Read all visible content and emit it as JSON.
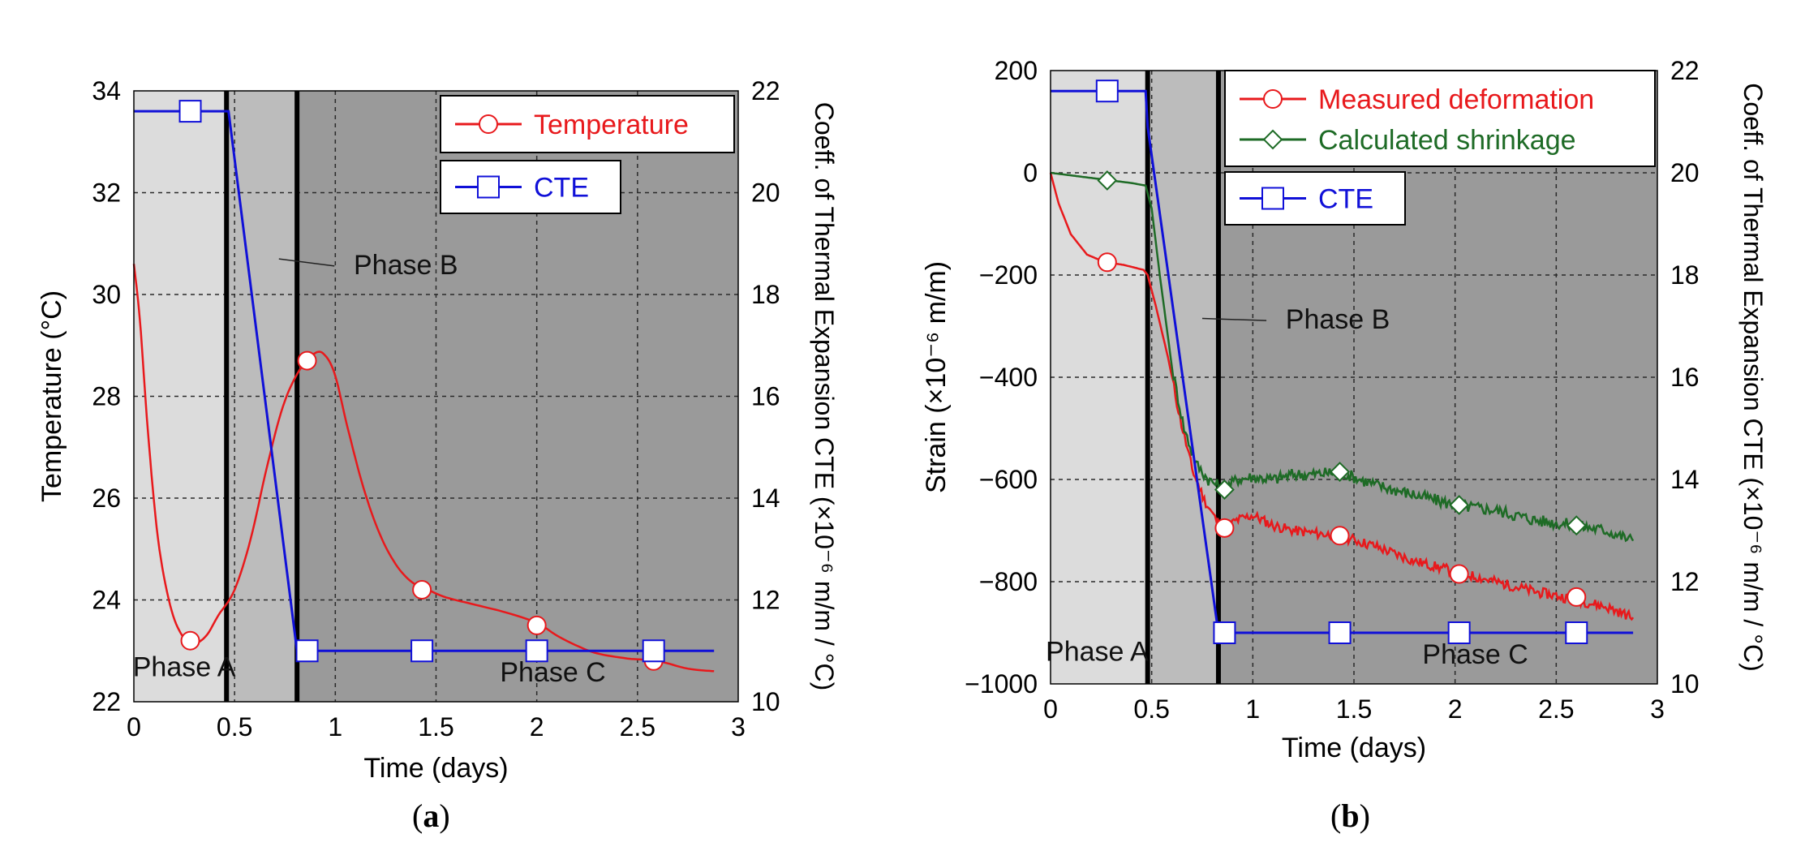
{
  "colors": {
    "phaseA": "#dcdcdc",
    "phaseB": "#bcbcbc",
    "phaseC": "#9a9a9a",
    "temperature": "#e8191c",
    "measured": "#e8191c",
    "shrinkage": "#1e6b26",
    "cte": "#1010d8",
    "grid": "#2a2a2a"
  },
  "captions": {
    "a": "a",
    "b": "b",
    "paren_open": "(",
    "paren_close": ")"
  },
  "chart_data": [
    {
      "id": "a",
      "type": "line",
      "xlabel": "Time (days)",
      "ylabel": "Temperature (°C)",
      "y2label": "Coeff. of Thermal Expansion CTE (×10⁻⁶ m/m / °C)",
      "xlim": [
        0,
        3
      ],
      "ylim": [
        22,
        34
      ],
      "y2lim": [
        10,
        22
      ],
      "x_ticks": [
        "0",
        "0.5",
        "1",
        "1.5",
        "2",
        "2.5",
        "3"
      ],
      "y_ticks": [
        "22",
        "24",
        "26",
        "28",
        "30",
        "32",
        "34"
      ],
      "y2_ticks": [
        "10",
        "12",
        "14",
        "16",
        "18",
        "20",
        "22"
      ],
      "phase_bounds": [
        0.46,
        0.81
      ],
      "phase_labels": {
        "A": {
          "text": "Phase A",
          "x": 0.25,
          "y": 22.5
        },
        "B": {
          "text": "Phase B",
          "x": 1.35,
          "y": 30.4,
          "leader_from": [
            0.72,
            30.7
          ]
        },
        "C": {
          "text": "Phase C",
          "x": 2.08,
          "y": 22.4
        }
      },
      "series": [
        {
          "name": "Temperature",
          "axis": "left",
          "marker": "circle",
          "points": [
            [
              0,
              30.6
            ],
            [
              0.03,
              29.5
            ],
            [
              0.07,
              27.3
            ],
            [
              0.12,
              25.2
            ],
            [
              0.18,
              23.9
            ],
            [
              0.24,
              23.3
            ],
            [
              0.3,
              23.15
            ],
            [
              0.36,
              23.3
            ],
            [
              0.42,
              23.7
            ],
            [
              0.5,
              24.2
            ],
            [
              0.58,
              25.2
            ],
            [
              0.66,
              26.6
            ],
            [
              0.74,
              27.8
            ],
            [
              0.82,
              28.5
            ],
            [
              0.9,
              28.85
            ],
            [
              0.95,
              28.8
            ],
            [
              1.0,
              28.4
            ],
            [
              1.06,
              27.4
            ],
            [
              1.14,
              26.2
            ],
            [
              1.22,
              25.3
            ],
            [
              1.3,
              24.7
            ],
            [
              1.38,
              24.35
            ],
            [
              1.46,
              24.2
            ],
            [
              1.55,
              24.05
            ],
            [
              1.7,
              23.9
            ],
            [
              1.85,
              23.75
            ],
            [
              2.0,
              23.55
            ],
            [
              2.1,
              23.3
            ],
            [
              2.2,
              23.1
            ],
            [
              2.3,
              22.95
            ],
            [
              2.45,
              22.85
            ],
            [
              2.6,
              22.8
            ],
            [
              2.75,
              22.65
            ],
            [
              2.88,
              22.6
            ]
          ],
          "markers": [
            [
              0.28,
              23.2
            ],
            [
              0.86,
              28.7
            ],
            [
              1.43,
              24.2
            ],
            [
              2.0,
              23.5
            ],
            [
              2.58,
              22.8
            ]
          ]
        },
        {
          "name": "CTE",
          "axis": "right",
          "marker": "square",
          "points": [
            [
              0,
              21.6
            ],
            [
              0.47,
              21.6
            ],
            [
              0.81,
              11.0
            ],
            [
              2.88,
              11.0
            ]
          ],
          "markers": [
            [
              0.28,
              21.6
            ],
            [
              0.86,
              11.0
            ],
            [
              1.43,
              11.0
            ],
            [
              2.0,
              11.0
            ],
            [
              2.58,
              11.0
            ]
          ]
        }
      ],
      "legend": [
        {
          "label": "Temperature",
          "series": "Temperature"
        },
        {
          "label": "CTE",
          "series": "CTE"
        }
      ]
    },
    {
      "id": "b",
      "type": "line",
      "xlabel": "Time (days)",
      "ylabel": "Strain (×10⁻⁶ m/m)",
      "y2label": "Coeff. of Thermal Expansion CTE (×10⁻⁶ m/m / °C)",
      "xlim": [
        0,
        3
      ],
      "ylim": [
        -1000,
        200
      ],
      "y2lim": [
        10,
        22
      ],
      "x_ticks": [
        "0",
        "0.5",
        "1",
        "1.5",
        "2",
        "2.5",
        "3"
      ],
      "y_ticks": [
        "−1000",
        "−800",
        "−600",
        "−400",
        "−200",
        "0",
        "200"
      ],
      "y2_ticks": [
        "10",
        "12",
        "14",
        "16",
        "18",
        "20",
        "22"
      ],
      "phase_bounds": [
        0.48,
        0.83
      ],
      "phase_labels": {
        "A": {
          "text": "Phase A",
          "x": 0.23,
          "y": -955
        },
        "B": {
          "text": "Phase B",
          "x": 1.42,
          "y": -305,
          "leader_from": [
            0.75,
            -285
          ]
        },
        "C": {
          "text": "Phase C",
          "x": 2.1,
          "y": -960
        }
      },
      "series": [
        {
          "name": "Measured deformation",
          "axis": "left",
          "marker": "circle",
          "jitter": 10,
          "points": [
            [
              0,
              0
            ],
            [
              0.04,
              -60
            ],
            [
              0.1,
              -120
            ],
            [
              0.18,
              -160
            ],
            [
              0.27,
              -175
            ],
            [
              0.36,
              -180
            ],
            [
              0.46,
              -190
            ],
            [
              0.48,
              -200
            ],
            [
              0.52,
              -260
            ],
            [
              0.58,
              -360
            ],
            [
              0.64,
              -480
            ],
            [
              0.7,
              -580
            ],
            [
              0.76,
              -640
            ],
            [
              0.82,
              -680
            ],
            [
              0.86,
              -695
            ],
            [
              0.92,
              -680
            ],
            [
              1.0,
              -670
            ],
            [
              1.1,
              -690
            ],
            [
              1.2,
              -700
            ],
            [
              1.3,
              -705
            ],
            [
              1.43,
              -710
            ],
            [
              1.6,
              -730
            ],
            [
              1.8,
              -760
            ],
            [
              2.0,
              -780
            ],
            [
              2.2,
              -800
            ],
            [
              2.4,
              -820
            ],
            [
              2.6,
              -835
            ],
            [
              2.75,
              -850
            ],
            [
              2.88,
              -870
            ]
          ],
          "markers": [
            [
              0.28,
              -175
            ],
            [
              0.86,
              -695
            ],
            [
              1.43,
              -710
            ],
            [
              2.02,
              -785
            ],
            [
              2.6,
              -830
            ]
          ]
        },
        {
          "name": "Calculated shrinkage",
          "axis": "left",
          "marker": "diamond",
          "jitter": 12,
          "points": [
            [
              0,
              0
            ],
            [
              0.1,
              -5
            ],
            [
              0.2,
              -10
            ],
            [
              0.3,
              -15
            ],
            [
              0.4,
              -20
            ],
            [
              0.47,
              -25
            ],
            [
              0.5,
              -70
            ],
            [
              0.54,
              -200
            ],
            [
              0.6,
              -380
            ],
            [
              0.66,
              -500
            ],
            [
              0.72,
              -570
            ],
            [
              0.78,
              -600
            ],
            [
              0.86,
              -620
            ],
            [
              0.92,
              -600
            ],
            [
              1.0,
              -595
            ],
            [
              1.1,
              -600
            ],
            [
              1.2,
              -590
            ],
            [
              1.3,
              -590
            ],
            [
              1.43,
              -585
            ],
            [
              1.6,
              -610
            ],
            [
              1.8,
              -630
            ],
            [
              2.0,
              -650
            ],
            [
              2.2,
              -660
            ],
            [
              2.4,
              -680
            ],
            [
              2.6,
              -690
            ],
            [
              2.75,
              -700
            ],
            [
              2.88,
              -720
            ]
          ],
          "markers": [
            [
              0.28,
              -15
            ],
            [
              0.86,
              -620
            ],
            [
              1.43,
              -585
            ],
            [
              2.02,
              -650
            ],
            [
              2.6,
              -690
            ]
          ]
        },
        {
          "name": "CTE",
          "axis": "right",
          "marker": "square",
          "points": [
            [
              0,
              21.6
            ],
            [
              0.47,
              21.6
            ],
            [
              0.48,
              20.9
            ],
            [
              0.83,
              11.0
            ],
            [
              2.88,
              11.0
            ]
          ],
          "markers": [
            [
              0.28,
              21.6
            ],
            [
              0.86,
              11.0
            ],
            [
              1.43,
              11.0
            ],
            [
              2.02,
              11.0
            ],
            [
              2.6,
              11.0
            ]
          ]
        }
      ],
      "legend": [
        {
          "label": "Measured deformation",
          "series": "Measured deformation"
        },
        {
          "label": "Calculated shrinkage",
          "series": "Calculated shrinkage"
        },
        {
          "label": "CTE",
          "series": "CTE"
        }
      ]
    }
  ]
}
